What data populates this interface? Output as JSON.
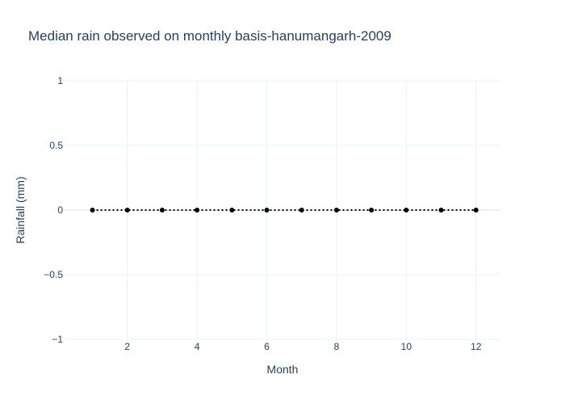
{
  "chart_data": {
    "type": "line",
    "title": "Median rain observed on monthly basis-hanumangarh-2009",
    "xlabel": "Month",
    "ylabel": "Rainfall (mm)",
    "x": [
      1,
      2,
      3,
      4,
      5,
      6,
      7,
      8,
      9,
      10,
      11,
      12
    ],
    "series": [
      {
        "values": [
          0,
          0,
          0,
          0,
          0,
          0,
          0,
          0,
          0,
          0,
          0,
          0
        ]
      }
    ],
    "xlim": [
      0.2,
      12.7
    ],
    "ylim": [
      -1,
      1
    ],
    "x_ticks": [
      2,
      4,
      6,
      8,
      10,
      12
    ],
    "x_tick_labels": [
      "2",
      "4",
      "6",
      "8",
      "10",
      "12"
    ],
    "y_ticks": [
      1,
      0.5,
      0,
      -0.5,
      -1
    ],
    "y_tick_labels": [
      "1",
      "0.5",
      "0",
      "−0.5",
      "−1"
    ],
    "grid": true,
    "line_style": "dotted",
    "colors": {
      "line": "#000000",
      "marker": "#000000",
      "grid": "#ebf0f8",
      "zeroline": "#ebf0f8",
      "text": "#2a3f5f"
    }
  }
}
